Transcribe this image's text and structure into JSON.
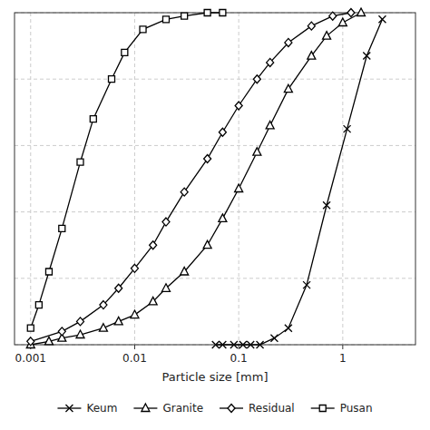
{
  "chart_data": {
    "type": "line",
    "x_label": "Particle size [mm]",
    "log": "x",
    "xlim": [
      0.0007,
      5
    ],
    "ylim": [
      0,
      100
    ],
    "xticks": [
      0.001,
      0.01,
      0.1,
      1
    ],
    "yticks": [
      0,
      20,
      40,
      60,
      80,
      100
    ],
    "tick_labels": "x",
    "grid": true,
    "legend": "bottom",
    "series": [
      {
        "name": "Keum",
        "color": "#000000",
        "marker": "x",
        "x": [
          0.06,
          0.07,
          0.09,
          0.11,
          0.13,
          0.16,
          0.22,
          0.3,
          0.45,
          0.7,
          1.1,
          1.7,
          2.4
        ],
        "values": [
          0,
          0,
          0,
          0,
          0,
          0,
          2,
          5,
          18,
          42,
          65,
          87,
          98
        ]
      },
      {
        "name": "Granite",
        "color": "#000000",
        "marker": "triangle",
        "x": [
          0.001,
          0.0015,
          0.002,
          0.003,
          0.005,
          0.007,
          0.01,
          0.015,
          0.02,
          0.03,
          0.05,
          0.07,
          0.1,
          0.15,
          0.2,
          0.3,
          0.5,
          0.7,
          1.0,
          1.5
        ],
        "values": [
          0,
          1,
          2,
          3,
          5,
          7,
          9,
          13,
          17,
          22,
          30,
          38,
          47,
          58,
          66,
          77,
          87,
          93,
          97,
          100
        ]
      },
      {
        "name": "Residual",
        "color": "#000000",
        "marker": "diamond",
        "x": [
          0.001,
          0.002,
          0.003,
          0.005,
          0.007,
          0.01,
          0.015,
          0.02,
          0.03,
          0.05,
          0.07,
          0.1,
          0.15,
          0.2,
          0.3,
          0.5,
          0.8,
          1.2
        ],
        "values": [
          1,
          4,
          7,
          12,
          17,
          23,
          30,
          37,
          46,
          56,
          64,
          72,
          80,
          85,
          91,
          96,
          99,
          100
        ]
      },
      {
        "name": "Pusan",
        "color": "#000000",
        "marker": "square",
        "x": [
          0.001,
          0.0012,
          0.0015,
          0.002,
          0.003,
          0.004,
          0.006,
          0.008,
          0.012,
          0.02,
          0.03,
          0.05,
          0.07
        ],
        "values": [
          5,
          12,
          22,
          35,
          55,
          68,
          80,
          88,
          95,
          98,
          99,
          100,
          100
        ]
      }
    ]
  }
}
